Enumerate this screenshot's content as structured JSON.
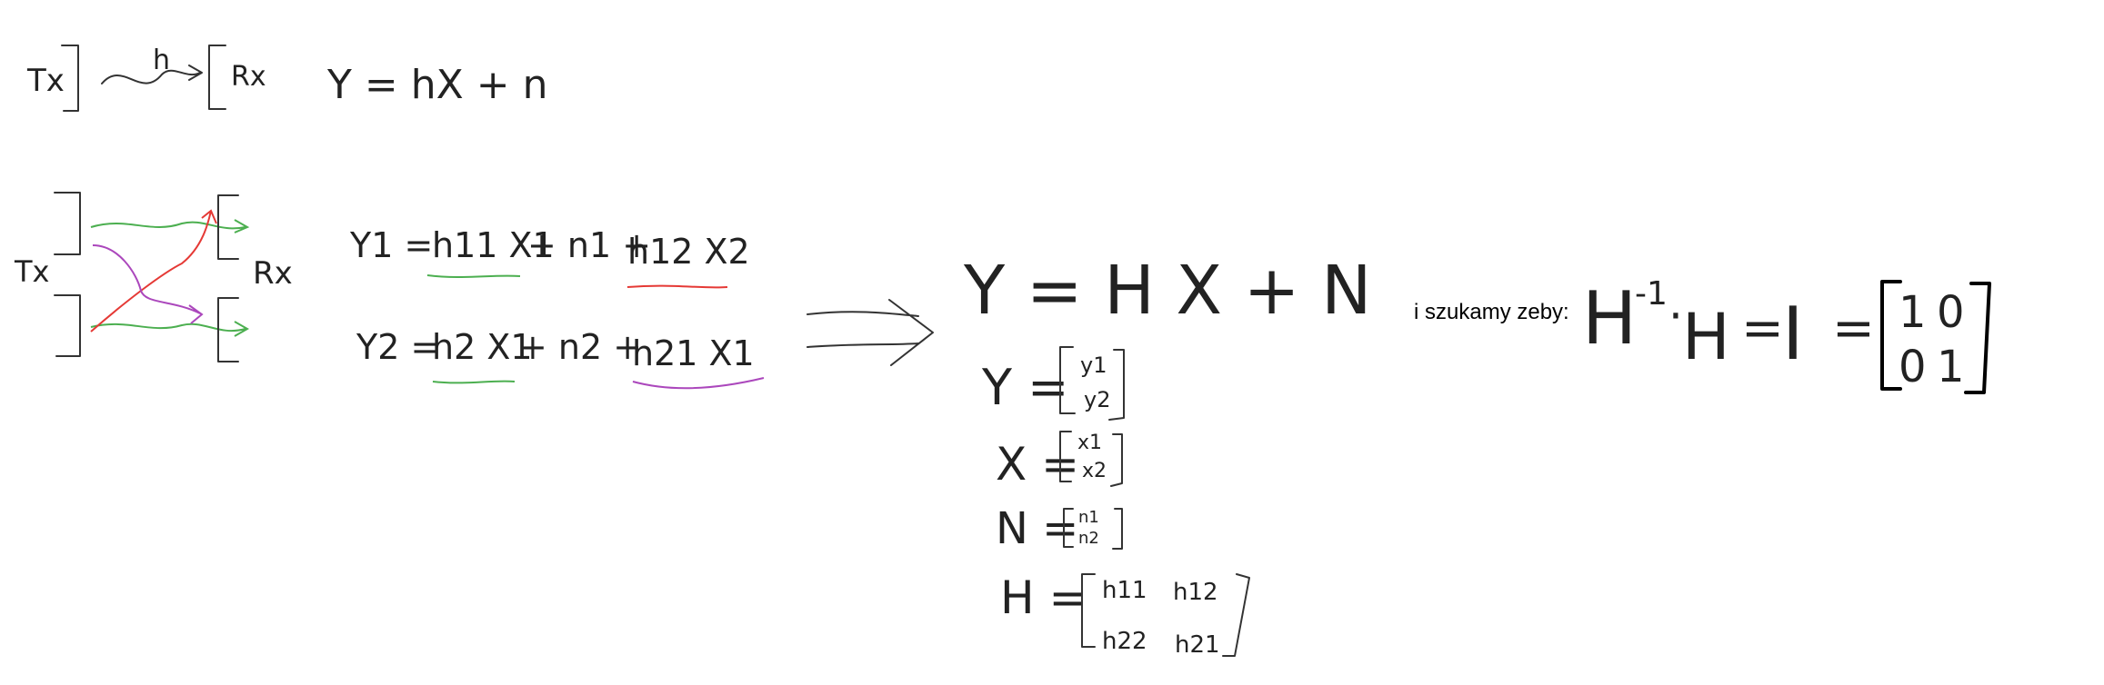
{
  "colors": {
    "ink_thin": "#333333",
    "ink_thick": "#000000",
    "green": "#4caf50",
    "red": "#e53935",
    "purple": "#ab47bc"
  },
  "siso": {
    "tx": "Tx",
    "channel": "h",
    "rx": "Rx",
    "equation": "Y = hX + n"
  },
  "mimo": {
    "tx": "Tx",
    "rx": "Rx",
    "eq1": {
      "lhs": "Y1 =",
      "t1": "h11 X1",
      "mid": "+ n1 +",
      "t2": "h12 X2"
    },
    "eq2": {
      "lhs": "Y2 =",
      "t1": "h2 X1",
      "mid": "+ n2 +",
      "t2": "h21 X1"
    }
  },
  "matrix_form": {
    "main": "Y = H X + N",
    "Y_lhs": "Y =",
    "Y_entries": [
      "y1",
      "y2"
    ],
    "X_lhs": "X =",
    "X_entries": [
      "x1",
      "x2"
    ],
    "N_lhs": "N =",
    "N_entries": [
      "n1",
      "n2"
    ],
    "H_lhs": "H =",
    "H_row1": [
      "h11",
      "h12"
    ],
    "H_row2": [
      "h22",
      "h21"
    ]
  },
  "goal": {
    "note": "i szukamy zeby:",
    "H": "H",
    "inv": "-1",
    "dot": "·",
    "H2": "H",
    "eq1": "=",
    "I": "I",
    "eq2": "=",
    "identity_row1": [
      "1",
      "0"
    ],
    "identity_row2": [
      "0",
      "1"
    ]
  }
}
